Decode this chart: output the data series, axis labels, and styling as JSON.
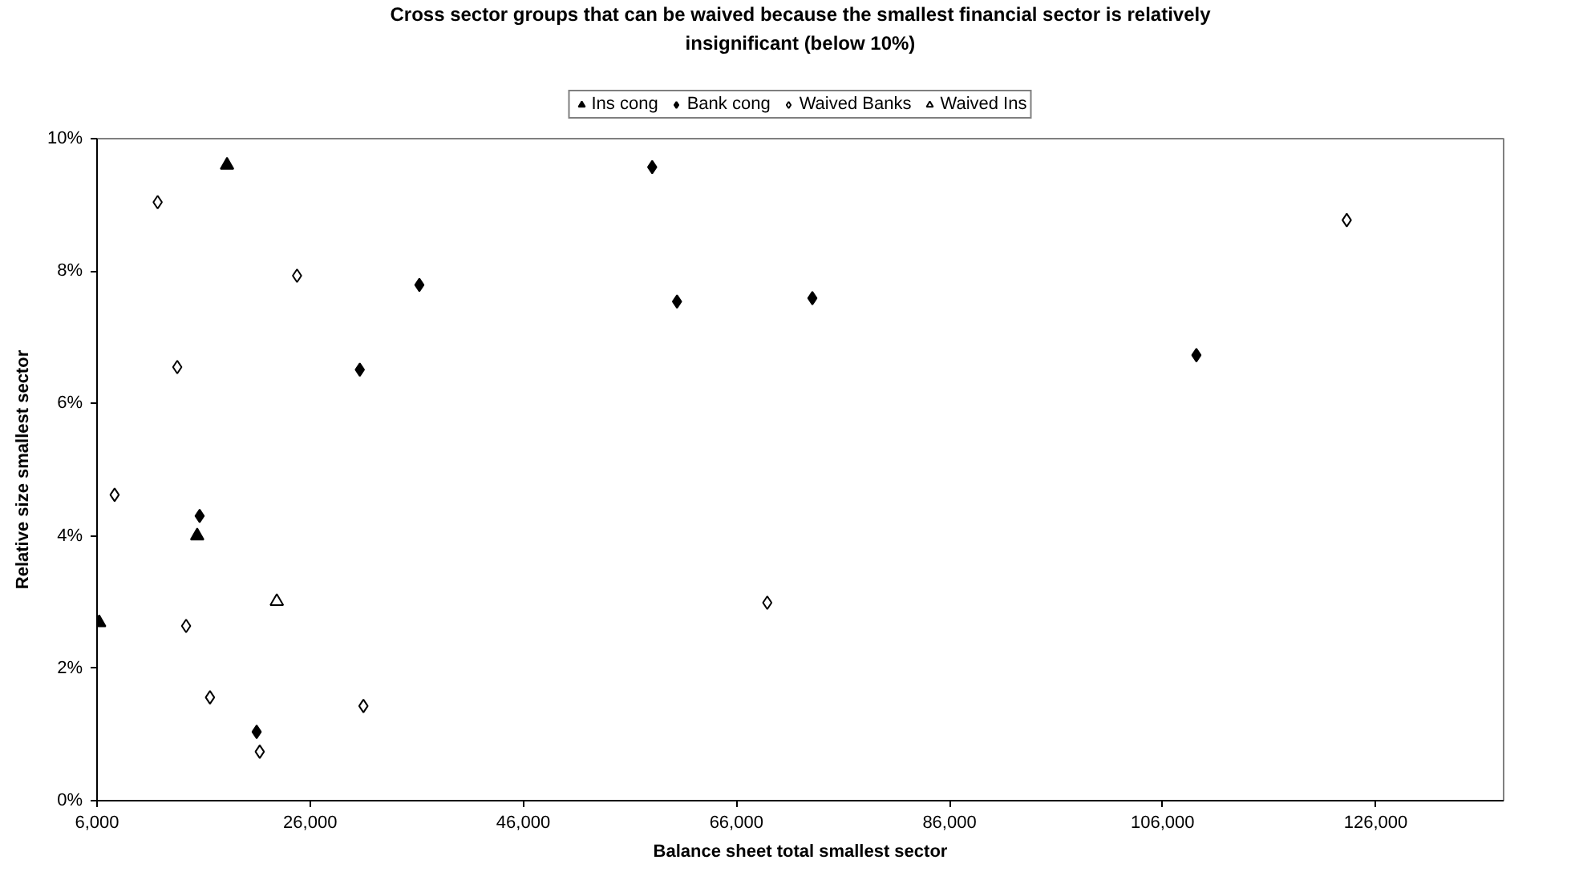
{
  "chart_data": {
    "type": "scatter",
    "title": "Cross sector groups that can be waived because the smallest financial sector is relatively insignificant (below 10%)",
    "xlabel": "Balance sheet total smallest sector",
    "ylabel": "Relative size smallest sector",
    "xlim": [
      6000,
      138000
    ],
    "xticks": [
      {
        "value": 6000,
        "label": "6,000"
      },
      {
        "value": 26000,
        "label": "26,000"
      },
      {
        "value": 46000,
        "label": "46,000"
      },
      {
        "value": 66000,
        "label": "66,000"
      },
      {
        "value": 86000,
        "label": "86,000"
      },
      {
        "value": 106000,
        "label": "106,000"
      },
      {
        "value": 126000,
        "label": "126,000"
      }
    ],
    "ylim": [
      0,
      10
    ],
    "yticks": [
      {
        "value": 0,
        "label": "0%"
      },
      {
        "value": 2,
        "label": "2%"
      },
      {
        "value": 4,
        "label": "4%"
      },
      {
        "value": 6,
        "label": "6%"
      },
      {
        "value": 8,
        "label": "8%"
      },
      {
        "value": 10,
        "label": "10%"
      }
    ],
    "legend": "top",
    "series": [
      {
        "name": "Ins cong",
        "color": "#000000",
        "marker": "triangle",
        "x": [
          18200,
          15400,
          6200
        ],
        "values": [
          9.6,
          4.0,
          2.69
        ]
      },
      {
        "name": "Bank cong",
        "color": "#000000",
        "marker": "diamond",
        "x": [
          15630,
          20980,
          30660,
          36250,
          58100,
          60430,
          73130,
          109170
        ],
        "values": [
          4.3,
          1.04,
          6.51,
          7.79,
          9.57,
          7.54,
          7.59,
          6.73
        ]
      },
      {
        "name": "Waived Banks",
        "color": "#ffffff",
        "marker": "diamond",
        "x": [
          11690,
          24770,
          13530,
          7650,
          14360,
          16600,
          21270,
          31000,
          68900,
          123280
        ],
        "values": [
          9.04,
          7.93,
          6.55,
          4.62,
          2.64,
          1.56,
          0.74,
          1.43,
          2.99,
          8.77
        ]
      },
      {
        "name": "Waived Ins",
        "color": "#ffffff",
        "marker": "triangle",
        "x": [
          22870
        ],
        "values": [
          3.01
        ]
      }
    ]
  }
}
